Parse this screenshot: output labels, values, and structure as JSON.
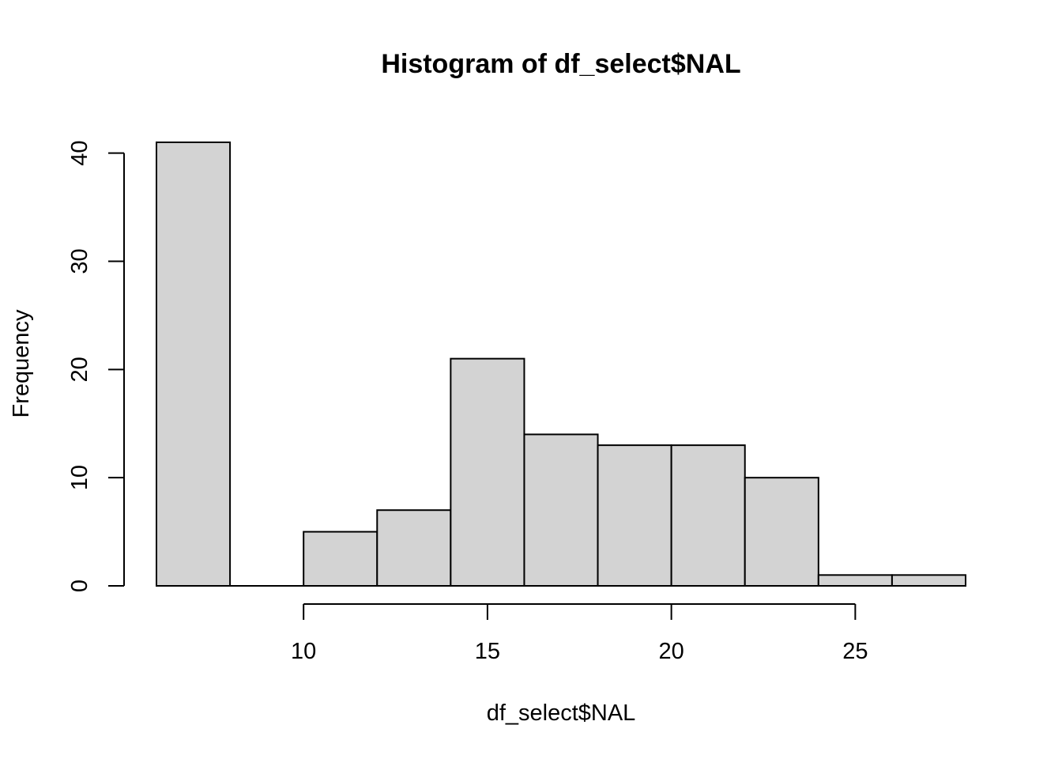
{
  "chart_data": {
    "type": "bar",
    "title": "Histogram of df_select$NAL",
    "xlabel": "df_select$NAL",
    "ylabel": "Frequency",
    "bins": [
      {
        "from": 6,
        "to": 8,
        "count": 41
      },
      {
        "from": 8,
        "to": 10,
        "count": 0
      },
      {
        "from": 10,
        "to": 12,
        "count": 5
      },
      {
        "from": 12,
        "to": 14,
        "count": 7
      },
      {
        "from": 14,
        "to": 16,
        "count": 21
      },
      {
        "from": 16,
        "to": 18,
        "count": 14
      },
      {
        "from": 18,
        "to": 20,
        "count": 13
      },
      {
        "from": 20,
        "to": 22,
        "count": 13
      },
      {
        "from": 22,
        "to": 24,
        "count": 10
      },
      {
        "from": 24,
        "to": 26,
        "count": 1
      },
      {
        "from": 26,
        "to": 28,
        "count": 1
      }
    ],
    "xticks": [
      10,
      15,
      20,
      25
    ],
    "yticks": [
      0,
      10,
      20,
      30,
      40
    ],
    "xlim": [
      6,
      28
    ],
    "ylim": [
      0,
      41
    ],
    "grid": false,
    "bar_color": "#d3d3d3",
    "edge_color": "#000000"
  }
}
